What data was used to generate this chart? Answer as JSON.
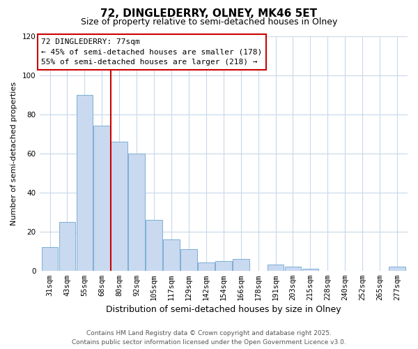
{
  "title": "72, DINGLEDERRY, OLNEY, MK46 5ET",
  "subtitle": "Size of property relative to semi-detached houses in Olney",
  "xlabel": "Distribution of semi-detached houses by size in Olney",
  "ylabel": "Number of semi-detached properties",
  "bar_labels": [
    "31sqm",
    "43sqm",
    "55sqm",
    "68sqm",
    "80sqm",
    "92sqm",
    "105sqm",
    "117sqm",
    "129sqm",
    "142sqm",
    "154sqm",
    "166sqm",
    "178sqm",
    "191sqm",
    "203sqm",
    "215sqm",
    "228sqm",
    "240sqm",
    "252sqm",
    "265sqm",
    "277sqm"
  ],
  "bar_values": [
    12,
    25,
    90,
    74,
    66,
    60,
    26,
    16,
    11,
    4,
    5,
    6,
    0,
    3,
    2,
    1,
    0,
    0,
    0,
    0,
    2
  ],
  "bar_color": "#c9d9f0",
  "bar_edge_color": "#7bafd4",
  "ylim": [
    0,
    120
  ],
  "yticks": [
    0,
    20,
    40,
    60,
    80,
    100,
    120
  ],
  "vline_x_index": 4,
  "vline_color": "#cc0000",
  "annotation_title": "72 DINGLEDERRY: 77sqm",
  "annotation_line1": "← 45% of semi-detached houses are smaller (178)",
  "annotation_line2": "55% of semi-detached houses are larger (218) →",
  "annotation_box_color": "#ffffff",
  "annotation_box_edge": "#cc0000",
  "footer1": "Contains HM Land Registry data © Crown copyright and database right 2025.",
  "footer2": "Contains public sector information licensed under the Open Government Licence v3.0.",
  "background_color": "#ffffff",
  "grid_color": "#c8d8e8",
  "title_fontsize": 11,
  "subtitle_fontsize": 9,
  "xlabel_fontsize": 9,
  "ylabel_fontsize": 8,
  "tick_fontsize": 7.5,
  "annotation_fontsize": 8,
  "footer_fontsize": 6.5
}
